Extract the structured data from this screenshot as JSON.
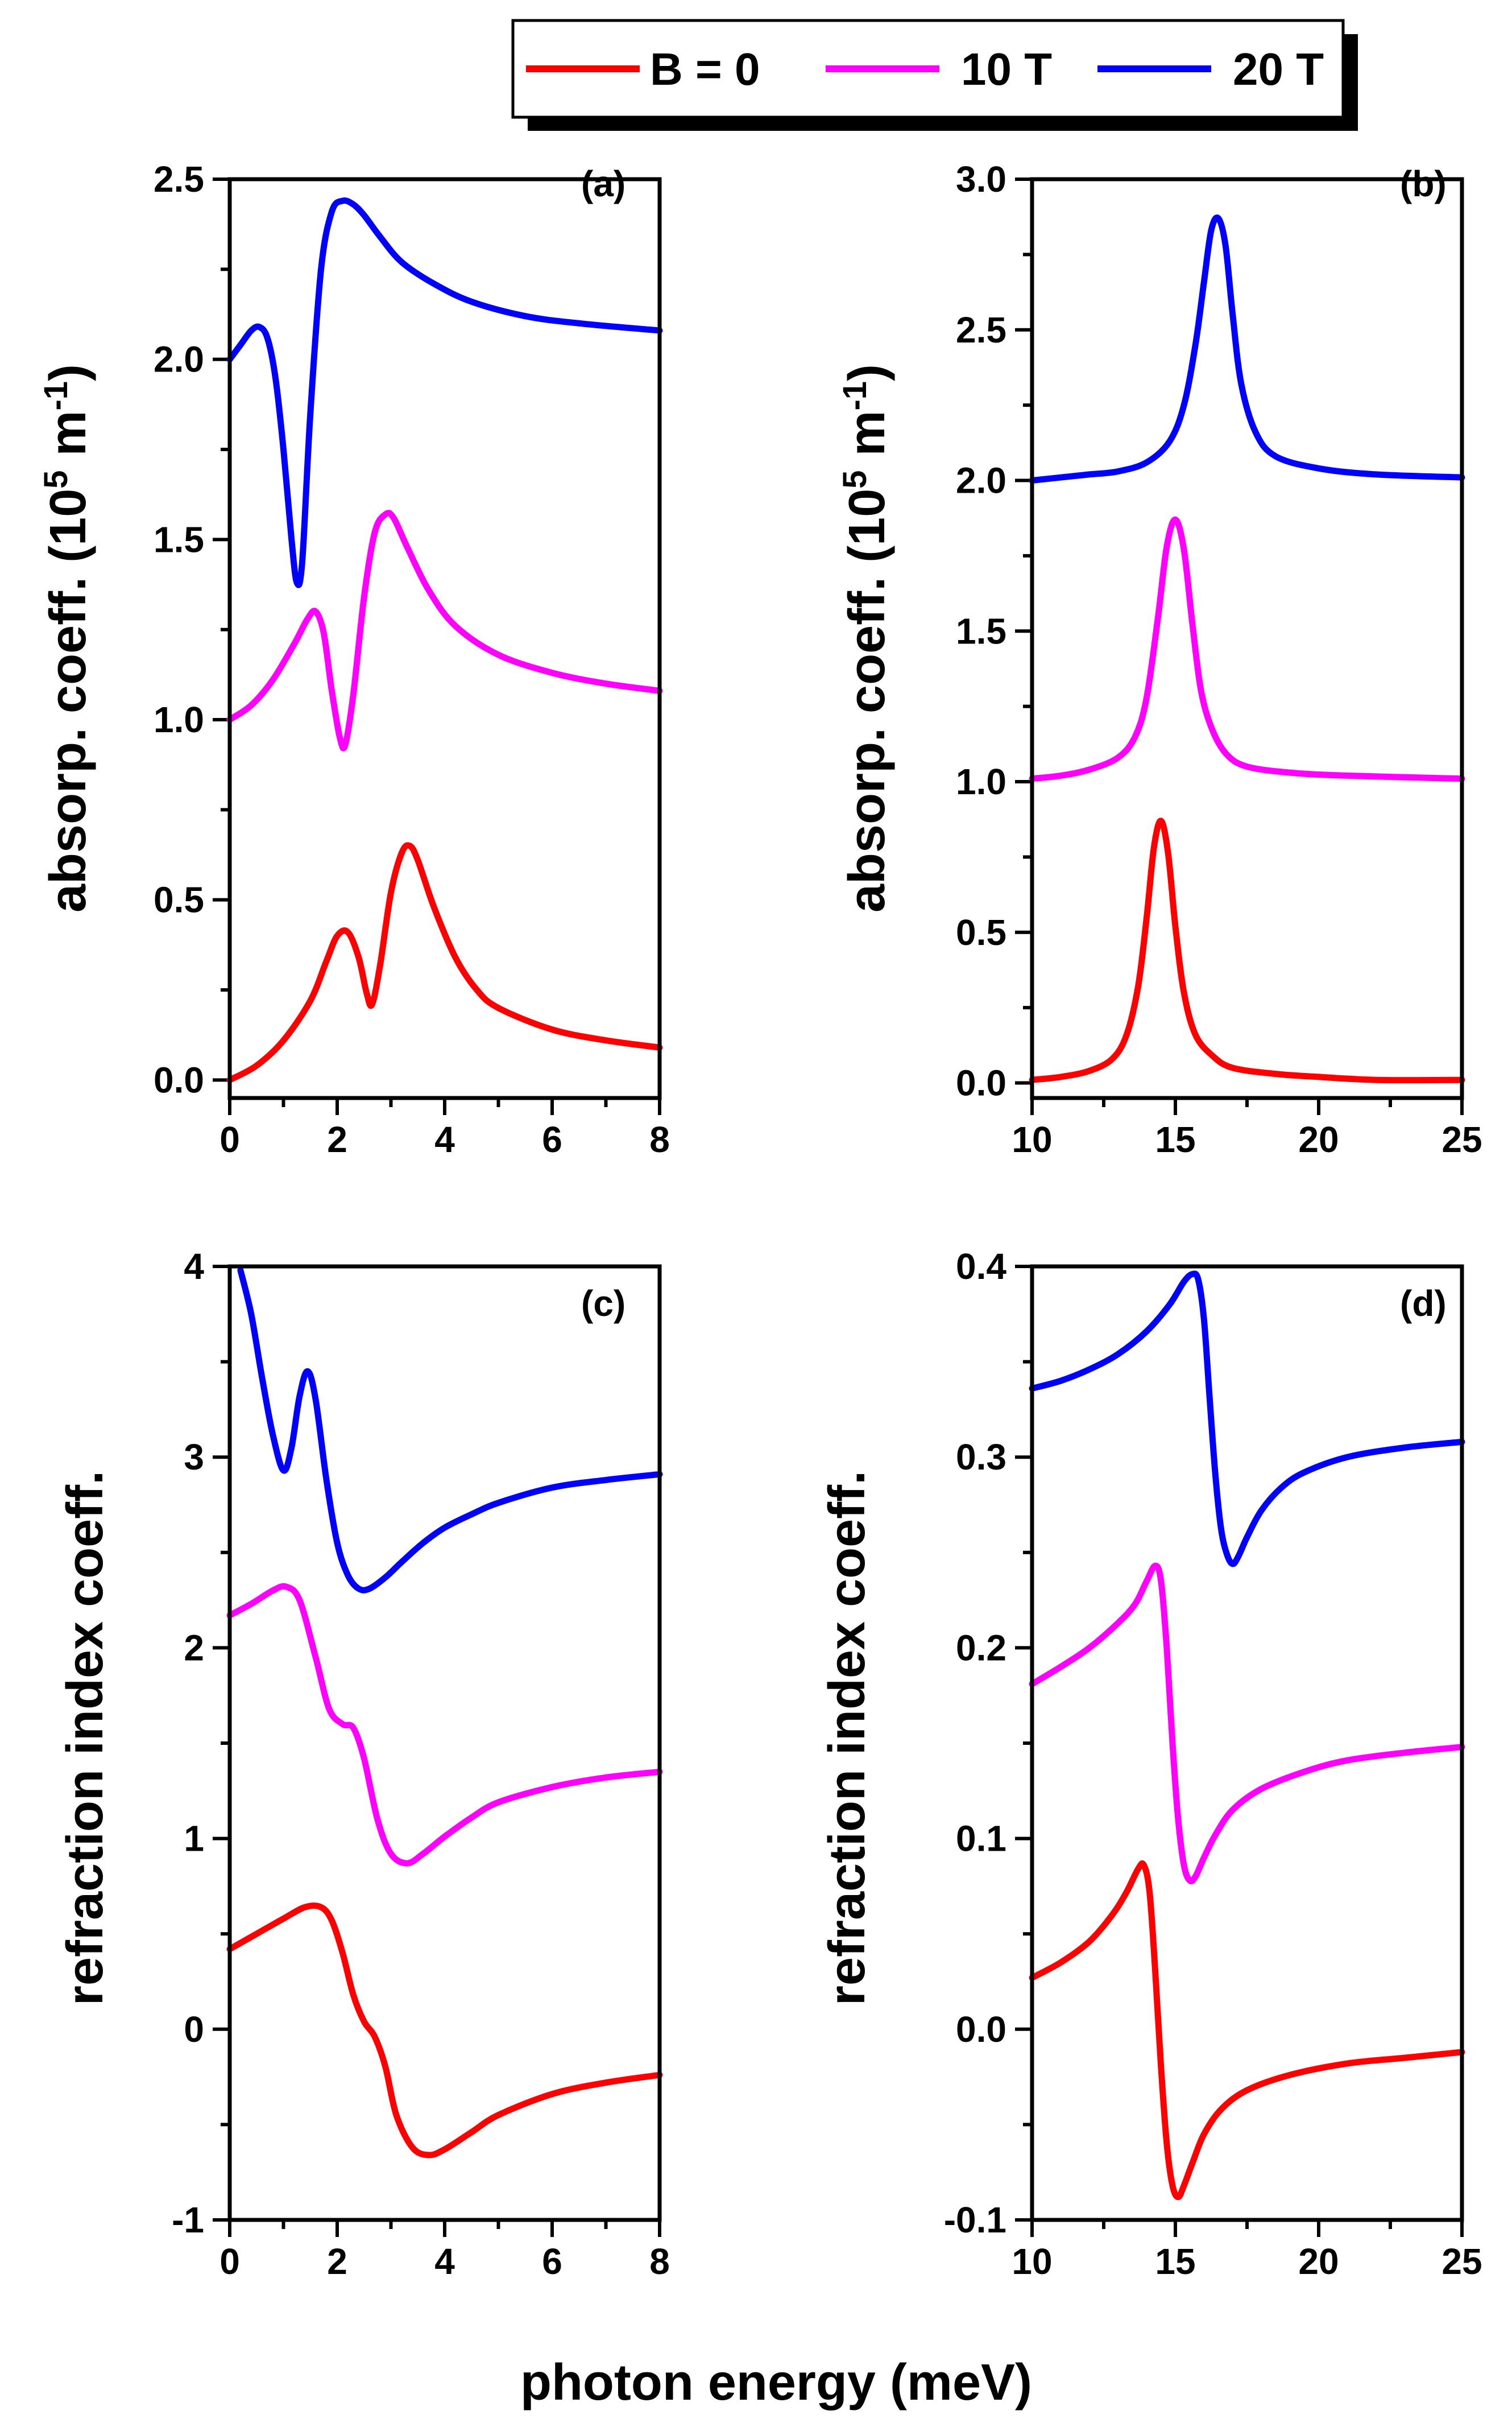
{
  "legend": {
    "entries": [
      {
        "label": "B = 0",
        "color": "#ff0000"
      },
      {
        "label": "10 T",
        "color": "#ff00ff"
      },
      {
        "label": "20 T",
        "color": "#0000ff"
      }
    ]
  },
  "xlabel": "photon energy (meV)",
  "chart_data": [
    {
      "type": "line",
      "panel": "(a)",
      "xlabel": "photon energy (meV)",
      "ylabel_main": "absorp. coeff. (10",
      "ylabel_sup1": "5",
      "ylabel_mid": " m",
      "ylabel_sup2": "-1",
      "ylabel_end": ")",
      "xlim": [
        0,
        8
      ],
      "ylim": [
        -0.05,
        2.5
      ],
      "xticks": [
        0,
        2,
        4,
        6,
        8
      ],
      "xtick_labels": [
        "0",
        "2",
        "4",
        "6",
        "8"
      ],
      "yticks": [
        0.0,
        0.5,
        1.0,
        1.5,
        2.0,
        2.5
      ],
      "ytick_labels": [
        "0.0",
        "0.5",
        "1.0",
        "1.5",
        "2.0",
        "2.5"
      ],
      "series": [
        {
          "name": "B = 0",
          "color": "#ff0000",
          "x": [
            0,
            0.5,
            1.0,
            1.5,
            1.8,
            2.0,
            2.2,
            2.4,
            2.55,
            2.65,
            2.8,
            3.0,
            3.2,
            3.35,
            3.5,
            3.8,
            4.2,
            4.6,
            5.0,
            6.0,
            7.0,
            8.0
          ],
          "y": [
            0.0,
            0.04,
            0.11,
            0.22,
            0.33,
            0.4,
            0.41,
            0.34,
            0.24,
            0.21,
            0.32,
            0.52,
            0.63,
            0.65,
            0.61,
            0.48,
            0.34,
            0.25,
            0.2,
            0.14,
            0.11,
            0.09
          ]
        },
        {
          "name": "10 T",
          "color": "#ff00ff",
          "x": [
            0,
            0.4,
            0.8,
            1.2,
            1.45,
            1.6,
            1.75,
            1.9,
            2.05,
            2.15,
            2.3,
            2.5,
            2.7,
            2.9,
            3.05,
            3.3,
            3.7,
            4.2,
            5.0,
            6.0,
            7.0,
            8.0
          ],
          "y": [
            1.0,
            1.04,
            1.11,
            1.21,
            1.28,
            1.3,
            1.24,
            1.08,
            0.95,
            0.93,
            1.07,
            1.34,
            1.52,
            1.57,
            1.56,
            1.48,
            1.36,
            1.26,
            1.18,
            1.13,
            1.1,
            1.08
          ]
        },
        {
          "name": "20 T",
          "color": "#0000ff",
          "x": [
            0,
            0.2,
            0.4,
            0.55,
            0.7,
            0.85,
            1.0,
            1.15,
            1.25,
            1.35,
            1.5,
            1.7,
            1.9,
            2.1,
            2.3,
            2.5,
            2.8,
            3.2,
            3.8,
            4.5,
            5.5,
            6.5,
            8.0
          ],
          "y": [
            2.0,
            2.04,
            2.08,
            2.09,
            2.06,
            1.95,
            1.75,
            1.5,
            1.38,
            1.44,
            1.85,
            2.25,
            2.41,
            2.44,
            2.43,
            2.4,
            2.34,
            2.27,
            2.21,
            2.16,
            2.12,
            2.1,
            2.08
          ]
        }
      ]
    },
    {
      "type": "line",
      "panel": "(b)",
      "xlabel": "photon energy (meV)",
      "ylabel_main": "absorp. coeff. (10",
      "ylabel_sup1": "5",
      "ylabel_mid": " m",
      "ylabel_sup2": "-1",
      "ylabel_end": ")",
      "xlim": [
        10,
        25
      ],
      "ylim": [
        -0.05,
        3.0
      ],
      "xticks": [
        10,
        15,
        20,
        25
      ],
      "xtick_labels": [
        "10",
        "15",
        "20",
        "25"
      ],
      "yticks": [
        0.0,
        0.5,
        1.0,
        1.5,
        2.0,
        2.5,
        3.0
      ],
      "ytick_labels": [
        "0.0",
        "0.5",
        "1.0",
        "1.5",
        "2.0",
        "2.5",
        "3.0"
      ],
      "series": [
        {
          "name": "B = 0",
          "color": "#ff0000",
          "x": [
            10,
            11,
            12,
            12.8,
            13.3,
            13.7,
            14.0,
            14.25,
            14.5,
            14.75,
            15.0,
            15.3,
            15.7,
            16.3,
            17.0,
            18.5,
            20.0,
            22.0,
            25.0
          ],
          "y": [
            0.01,
            0.02,
            0.04,
            0.08,
            0.16,
            0.32,
            0.55,
            0.78,
            0.87,
            0.76,
            0.52,
            0.3,
            0.16,
            0.09,
            0.05,
            0.03,
            0.02,
            0.01,
            0.01
          ]
        },
        {
          "name": "10 T",
          "color": "#ff00ff",
          "x": [
            10,
            11,
            12,
            13,
            13.6,
            14.0,
            14.4,
            14.7,
            15.0,
            15.3,
            15.6,
            15.9,
            16.3,
            16.8,
            17.5,
            19.0,
            21.0,
            25.0
          ],
          "y": [
            1.01,
            1.02,
            1.04,
            1.08,
            1.15,
            1.28,
            1.55,
            1.78,
            1.87,
            1.77,
            1.52,
            1.3,
            1.17,
            1.09,
            1.05,
            1.03,
            1.02,
            1.01
          ]
        },
        {
          "name": "20 T",
          "color": "#0000ff",
          "x": [
            10,
            11,
            12,
            13,
            14,
            14.8,
            15.3,
            15.7,
            16.0,
            16.25,
            16.5,
            16.75,
            17.0,
            17.3,
            17.8,
            18.5,
            20.0,
            22.0,
            25.0
          ],
          "y": [
            2.0,
            2.01,
            2.02,
            2.03,
            2.06,
            2.13,
            2.25,
            2.45,
            2.66,
            2.83,
            2.87,
            2.78,
            2.55,
            2.32,
            2.16,
            2.08,
            2.04,
            2.02,
            2.01
          ]
        }
      ]
    },
    {
      "type": "line",
      "panel": "(c)",
      "xlabel": "photon energy (meV)",
      "ylabel_main": "refraction index coeff.",
      "xlim": [
        0,
        8
      ],
      "ylim": [
        -1,
        4
      ],
      "xticks": [
        0,
        2,
        4,
        6,
        8
      ],
      "xtick_labels": [
        "0",
        "2",
        "4",
        "6",
        "8"
      ],
      "yticks": [
        -1,
        0,
        1,
        2,
        3,
        4
      ],
      "ytick_labels": [
        "-1",
        "0",
        "1",
        "2",
        "3",
        "4"
      ],
      "series": [
        {
          "name": "B = 0",
          "color": "#ff0000",
          "x": [
            0,
            0.5,
            1.0,
            1.4,
            1.7,
            1.9,
            2.1,
            2.3,
            2.5,
            2.7,
            2.9,
            3.1,
            3.4,
            3.7,
            4.0,
            4.5,
            5.0,
            6.0,
            7.0,
            8.0
          ],
          "y": [
            0.42,
            0.5,
            0.58,
            0.64,
            0.64,
            0.57,
            0.4,
            0.18,
            0.04,
            -0.04,
            -0.2,
            -0.45,
            -0.62,
            -0.66,
            -0.63,
            -0.54,
            -0.45,
            -0.34,
            -0.28,
            -0.24
          ]
        },
        {
          "name": "10 T",
          "color": "#ff00ff",
          "x": [
            0,
            0.4,
            0.8,
            1.05,
            1.3,
            1.6,
            1.85,
            2.1,
            2.3,
            2.5,
            2.75,
            3.0,
            3.3,
            3.6,
            4.0,
            4.5,
            5.0,
            6.0,
            7.0,
            8.0
          ],
          "y": [
            2.17,
            2.23,
            2.3,
            2.32,
            2.25,
            1.95,
            1.68,
            1.6,
            1.58,
            1.42,
            1.1,
            0.92,
            0.87,
            0.92,
            1.01,
            1.11,
            1.19,
            1.27,
            1.32,
            1.35
          ]
        },
        {
          "name": "20 T",
          "color": "#0000ff",
          "x": [
            0.2,
            0.4,
            0.6,
            0.8,
            1.0,
            1.15,
            1.3,
            1.45,
            1.6,
            1.8,
            2.0,
            2.2,
            2.4,
            2.6,
            2.9,
            3.2,
            3.6,
            4.0,
            4.5,
            5.0,
            6.0,
            7.0,
            8.0
          ],
          "y": [
            3.98,
            3.75,
            3.42,
            3.12,
            2.93,
            3.05,
            3.32,
            3.45,
            3.3,
            2.88,
            2.55,
            2.38,
            2.31,
            2.31,
            2.37,
            2.45,
            2.55,
            2.63,
            2.7,
            2.76,
            2.84,
            2.88,
            2.91
          ]
        }
      ]
    },
    {
      "type": "line",
      "panel": "(d)",
      "xlabel": "photon energy (meV)",
      "ylabel_main": "refraction index coeff.",
      "xlim": [
        10,
        25
      ],
      "ylim": [
        -0.1,
        0.4
      ],
      "xticks": [
        10,
        15,
        20,
        25
      ],
      "xtick_labels": [
        "10",
        "15",
        "20",
        "25"
      ],
      "yticks": [
        -0.1,
        0.0,
        0.1,
        0.2,
        0.3,
        0.4
      ],
      "ytick_labels": [
        "-0.1",
        "0.0",
        "0.1",
        "0.2",
        "0.3",
        "0.4"
      ],
      "series": [
        {
          "name": "B = 0",
          "color": "#ff0000",
          "x": [
            10,
            11,
            12,
            12.8,
            13.3,
            13.7,
            13.9,
            14.1,
            14.3,
            14.5,
            14.7,
            14.9,
            15.1,
            15.3,
            15.6,
            16.0,
            16.6,
            17.5,
            19.0,
            21.0,
            23.0,
            25.0
          ],
          "y": [
            0.027,
            0.035,
            0.046,
            0.06,
            0.072,
            0.084,
            0.086,
            0.072,
            0.03,
            -0.02,
            -0.06,
            -0.082,
            -0.088,
            -0.082,
            -0.07,
            -0.055,
            -0.042,
            -0.032,
            -0.024,
            -0.018,
            -0.015,
            -0.012
          ]
        },
        {
          "name": "10 T",
          "color": "#ff00ff",
          "x": [
            10,
            11,
            12,
            13,
            13.6,
            14.0,
            14.3,
            14.5,
            14.7,
            14.9,
            15.1,
            15.3,
            15.5,
            15.7,
            16.0,
            16.4,
            17.0,
            18.0,
            19.5,
            21.0,
            23.0,
            25.0
          ],
          "y": [
            0.181,
            0.19,
            0.2,
            0.213,
            0.223,
            0.235,
            0.243,
            0.235,
            0.2,
            0.15,
            0.11,
            0.086,
            0.078,
            0.08,
            0.09,
            0.102,
            0.115,
            0.126,
            0.135,
            0.141,
            0.145,
            0.148
          ]
        },
        {
          "name": "20 T",
          "color": "#0000ff",
          "x": [
            10,
            11,
            12,
            13,
            14,
            14.8,
            15.3,
            15.6,
            15.8,
            16.0,
            16.2,
            16.4,
            16.6,
            16.8,
            17.0,
            17.2,
            17.5,
            18.0,
            18.7,
            19.5,
            21.0,
            23.0,
            25.0
          ],
          "y": [
            0.336,
            0.34,
            0.346,
            0.354,
            0.366,
            0.38,
            0.392,
            0.396,
            0.393,
            0.372,
            0.33,
            0.29,
            0.262,
            0.249,
            0.244,
            0.248,
            0.258,
            0.272,
            0.284,
            0.292,
            0.3,
            0.305,
            0.308
          ]
        }
      ]
    }
  ]
}
